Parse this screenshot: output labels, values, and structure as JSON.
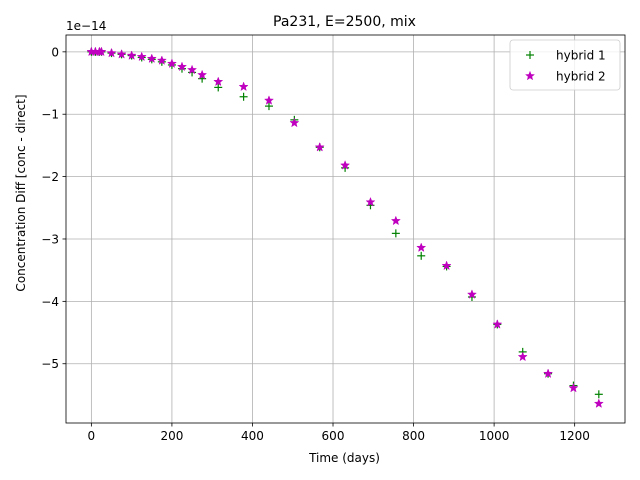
{
  "chart_data": {
    "type": "scatter",
    "title": "Pa231, E=2500, mix",
    "xlabel": "Time (days)",
    "ylabel": "Concentration Diff [conc - direct]",
    "offset_label": "1e−14",
    "xlim": [
      -63,
      1325
    ],
    "ylim": [
      -5.95,
      0.27
    ],
    "xticks": [
      0,
      200,
      400,
      600,
      800,
      1000,
      1200
    ],
    "xtick_labels": [
      "0",
      "200",
      "400",
      "600",
      "800",
      "1000",
      "1200"
    ],
    "yticks": [
      0,
      -1,
      -2,
      -3,
      -4,
      -5
    ],
    "ytick_labels": [
      "0",
      "−1",
      "−2",
      "−3",
      "−4",
      "−5"
    ],
    "grid": true,
    "legend_position": "top-right",
    "series": [
      {
        "name": "hybrid 1",
        "marker": "plus",
        "color": "#008000",
        "x": [
          0,
          10,
          20,
          25,
          50,
          75,
          100,
          125,
          150,
          175,
          200,
          225,
          250,
          275,
          315,
          378,
          441,
          504,
          567,
          630,
          693,
          756,
          819,
          882,
          945,
          1008,
          1071,
          1134,
          1197,
          1260
        ],
        "y": [
          0.0,
          0.0,
          0.0,
          0.0,
          -0.02,
          -0.04,
          -0.06,
          -0.09,
          -0.12,
          -0.16,
          -0.21,
          -0.27,
          -0.33,
          -0.43,
          -0.57,
          -0.72,
          -0.87,
          -1.09,
          -1.53,
          -1.86,
          -2.46,
          -2.91,
          -3.27,
          -3.44,
          -3.93,
          -4.37,
          -4.81,
          -5.16,
          -5.35,
          -5.49
        ]
      },
      {
        "name": "hybrid 2",
        "marker": "star",
        "color": "#bf00bf",
        "x": [
          0,
          10,
          20,
          25,
          50,
          75,
          100,
          125,
          150,
          175,
          200,
          225,
          250,
          275,
          315,
          378,
          441,
          504,
          567,
          630,
          693,
          756,
          819,
          882,
          945,
          1008,
          1071,
          1134,
          1197,
          1260
        ],
        "y": [
          0.0,
          0.0,
          0.0,
          0.0,
          -0.02,
          -0.04,
          -0.06,
          -0.08,
          -0.11,
          -0.14,
          -0.19,
          -0.24,
          -0.29,
          -0.37,
          -0.48,
          -0.56,
          -0.78,
          -1.14,
          -1.53,
          -1.82,
          -2.41,
          -2.71,
          -3.14,
          -3.43,
          -3.89,
          -4.37,
          -4.89,
          -5.16,
          -5.39,
          -5.64
        ]
      }
    ]
  }
}
